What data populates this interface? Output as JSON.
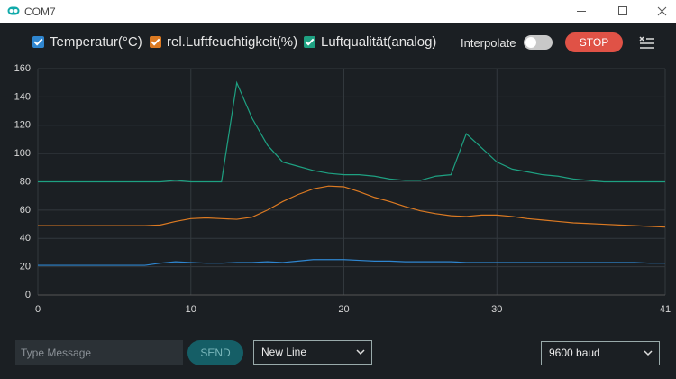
{
  "window": {
    "title": "COM7"
  },
  "toolbar": {
    "interpolate": "Interpolate",
    "stop": "STOP"
  },
  "chart_data": {
    "type": "line",
    "x": [
      0,
      1,
      2,
      3,
      4,
      5,
      6,
      7,
      8,
      9,
      10,
      11,
      12,
      13,
      14,
      15,
      16,
      17,
      18,
      19,
      20,
      21,
      22,
      23,
      24,
      25,
      26,
      27,
      28,
      29,
      30,
      31,
      32,
      33,
      34,
      35,
      36,
      37,
      38,
      39,
      40,
      41
    ],
    "series": [
      {
        "name": "Temperatur(°C)",
        "color": "#2f86d0",
        "values": [
          21,
          21,
          21,
          21,
          21,
          21,
          21,
          21,
          22.5,
          23.5,
          23,
          22.5,
          22.5,
          23,
          23,
          23.5,
          23,
          24,
          25,
          25,
          25,
          24.5,
          24,
          24,
          23.5,
          23.5,
          23.5,
          23.5,
          23,
          23,
          23,
          23,
          23,
          23,
          23,
          23,
          23,
          23,
          23,
          23,
          22.5,
          22.5
        ]
      },
      {
        "name": "rel.Luftfeuchtigkeit(%)",
        "color": "#dc7a22",
        "values": [
          49,
          49,
          49,
          49,
          49,
          49,
          49,
          49,
          49.5,
          52,
          54,
          54.5,
          54,
          53.5,
          55,
          60,
          66,
          71,
          75,
          77,
          76.5,
          73,
          69,
          66,
          62.5,
          59.5,
          57.5,
          56,
          55.5,
          56.5,
          56.5,
          55.5,
          54,
          53,
          52,
          51,
          50.5,
          50,
          49.5,
          49,
          48.5,
          48
        ]
      },
      {
        "name": "Luftqualität(analog)",
        "color": "#1ea182",
        "values": [
          80,
          80,
          80,
          80,
          80,
          80,
          80,
          80,
          80,
          81,
          80,
          80,
          80,
          150,
          125,
          106,
          94,
          91,
          88,
          86,
          85,
          85,
          84,
          82,
          81,
          81,
          84,
          85,
          114,
          104,
          94,
          89,
          87,
          85,
          84,
          82,
          81,
          80,
          80,
          80,
          80,
          80
        ]
      }
    ],
    "xlim": [
      0,
      41
    ],
    "xticks": [
      0,
      10,
      20,
      30,
      41
    ],
    "ylim": [
      0,
      160
    ],
    "yticks": [
      0,
      20,
      40,
      60,
      80,
      100,
      120,
      140,
      160
    ],
    "grid": true
  },
  "footer": {
    "message_placeholder": "Type Message",
    "send": "SEND",
    "line_ending": "New Line",
    "baud": "9600 baud"
  }
}
